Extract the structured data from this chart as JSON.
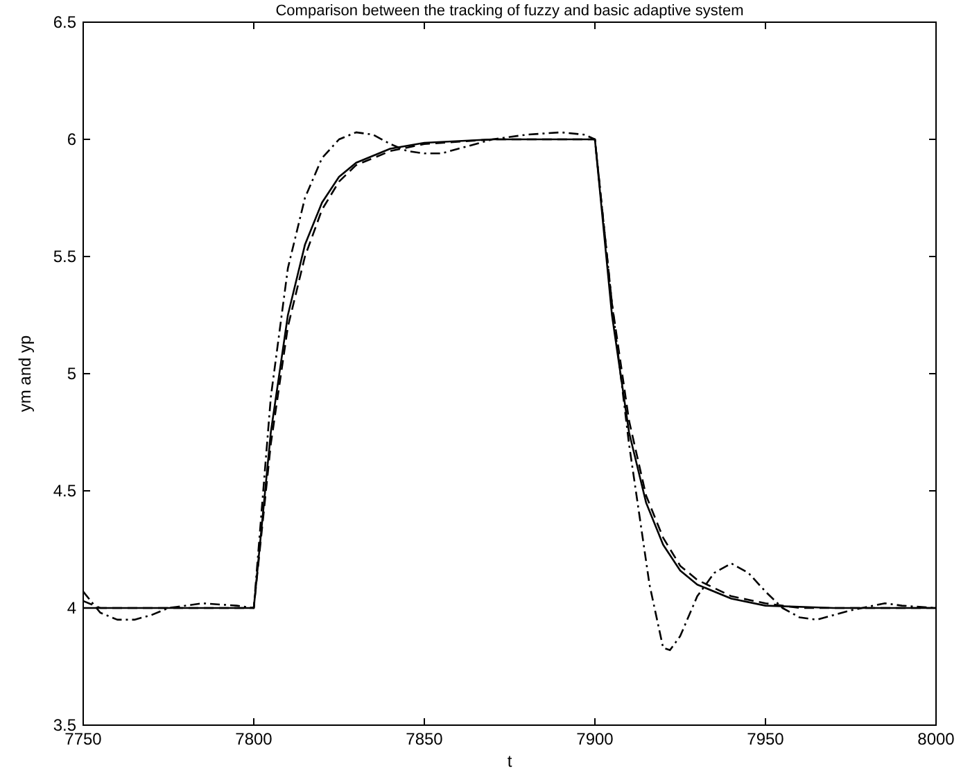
{
  "chart_data": {
    "type": "line",
    "title": "Comparison between the tracking of fuzzy and basic adaptive system",
    "xlabel": "t",
    "ylabel": "ym and yp",
    "xlim": [
      7750,
      8000
    ],
    "xticks": [
      7750,
      7800,
      7850,
      7900,
      7950,
      8000
    ],
    "ylim": [
      3.5,
      6.5
    ],
    "yticks": [
      3.5,
      4,
      4.5,
      5,
      5.5,
      6,
      6.5
    ],
    "grid": false,
    "series": [
      {
        "color": "#000000",
        "line_style": "solid",
        "x": [
          7750,
          7800,
          7805,
          7810,
          7815,
          7820,
          7825,
          7830,
          7840,
          7850,
          7870,
          7900,
          7905,
          7910,
          7915,
          7920,
          7925,
          7930,
          7940,
          7950,
          7970,
          8000
        ],
        "values": [
          4,
          4,
          4.75,
          5.25,
          5.55,
          5.73,
          5.84,
          5.9,
          5.96,
          5.985,
          6,
          6,
          5.25,
          4.75,
          4.45,
          4.27,
          4.16,
          4.1,
          4.04,
          4.01,
          4,
          4
        ]
      },
      {
        "color": "#000000",
        "line_style": "dashed",
        "x": [
          7750,
          7755,
          7800,
          7805,
          7810,
          7815,
          7820,
          7825,
          7830,
          7840,
          7850,
          7870,
          7900,
          7905,
          7910,
          7915,
          7920,
          7925,
          7930,
          7940,
          7950,
          7960,
          8000
        ],
        "values": [
          4.03,
          4,
          4,
          4.7,
          5.2,
          5.5,
          5.7,
          5.82,
          5.89,
          5.95,
          5.98,
          6,
          6,
          5.3,
          4.8,
          4.48,
          4.3,
          4.18,
          4.12,
          4.05,
          4.02,
          4,
          4
        ]
      },
      {
        "color": "#000000",
        "line_style": "dashdot",
        "x": [
          7750,
          7755,
          7760,
          7765,
          7770,
          7775,
          7785,
          7795,
          7800,
          7805,
          7810,
          7815,
          7820,
          7825,
          7830,
          7835,
          7840,
          7845,
          7850,
          7855,
          7860,
          7870,
          7880,
          7890,
          7897,
          7900,
          7905,
          7910,
          7913,
          7916,
          7920,
          7922,
          7925,
          7930,
          7935,
          7940,
          7945,
          7950,
          7955,
          7960,
          7965,
          7970,
          7975,
          7985,
          7990,
          8000
        ],
        "values": [
          4.07,
          3.98,
          3.95,
          3.95,
          3.97,
          4,
          4.02,
          4.01,
          4,
          4.9,
          5.45,
          5.75,
          5.92,
          6,
          6.03,
          6.02,
          5.98,
          5.95,
          5.94,
          5.94,
          5.96,
          6,
          6.02,
          6.03,
          6.02,
          6,
          5.3,
          4.7,
          4.4,
          4.1,
          3.83,
          3.82,
          3.88,
          4.05,
          4.15,
          4.19,
          4.15,
          4.07,
          4,
          3.96,
          3.95,
          3.97,
          3.99,
          4.02,
          4.01,
          4
        ]
      }
    ]
  }
}
